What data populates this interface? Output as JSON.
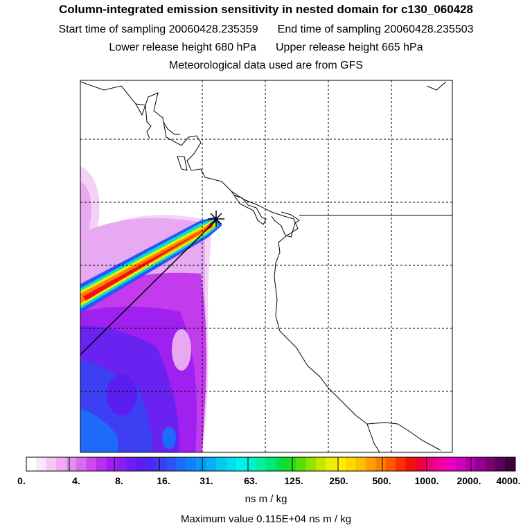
{
  "header": {
    "title": "Column-integrated emission sensitivity in nested domain for c130_060428",
    "start_label": "Start time of sampling 20060428.235359",
    "end_label": "End time of sampling 20060428.235503",
    "lower_label": "Lower release height  680 hPa",
    "upper_label": "Upper release height  665 hPa",
    "met_label": "Meteorological data used are from GFS"
  },
  "colorbar": {
    "tick_labels": [
      "0.",
      "4.",
      "8.",
      "16.",
      "31.",
      "63.",
      "125.",
      "250.",
      "500.",
      "1000.",
      "2000.",
      "4000."
    ],
    "colors": [
      "#ffffff",
      "#fbe6fb",
      "#f4c8f6",
      "#eeaaf3",
      "#e48ef0",
      "#d86cee",
      "#cc4aee",
      "#b92eef",
      "#a020f0",
      "#8a1ff2",
      "#6b20f0",
      "#5a1ef0",
      "#4a2af0",
      "#3b3ef4",
      "#2c55f7",
      "#1e6bfa",
      "#1082f8",
      "#0898f6",
      "#02b0f4",
      "#00c8f0",
      "#00dcf0",
      "#00f0f0",
      "#00f2d0",
      "#00f0a8",
      "#00e878",
      "#00e048",
      "#20dc20",
      "#58e000",
      "#8ee400",
      "#c2ea00",
      "#eaee00",
      "#fff000",
      "#ffd800",
      "#ffbe00",
      "#ffa000",
      "#ff8000",
      "#ff5a00",
      "#ff3000",
      "#f41010",
      "#ec0040",
      "#ee0078",
      "#f000a0",
      "#e800c0",
      "#d000c0",
      "#b400a8",
      "#96008e",
      "#780074",
      "#5a0058",
      "#3c003c"
    ],
    "units_label": "ns m / kg"
  },
  "summary": {
    "max_value_label": "Maximum value  0.115E+04 ns m / kg"
  }
}
